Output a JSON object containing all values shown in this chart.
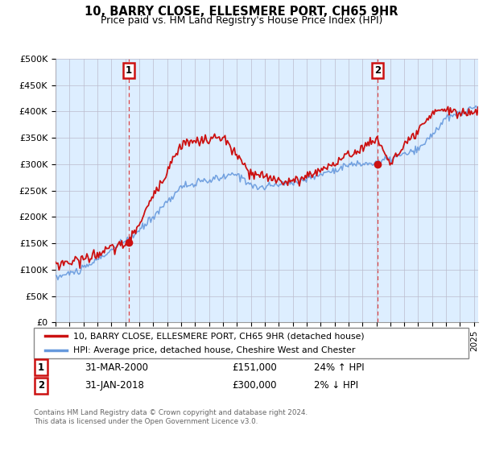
{
  "title": "10, BARRY CLOSE, ELLESMERE PORT, CH65 9HR",
  "subtitle": "Price paid vs. HM Land Registry's House Price Index (HPI)",
  "ylabel_ticks": [
    "£0",
    "£50K",
    "£100K",
    "£150K",
    "£200K",
    "£250K",
    "£300K",
    "£350K",
    "£400K",
    "£450K",
    "£500K"
  ],
  "ytick_values": [
    0,
    50000,
    100000,
    150000,
    200000,
    250000,
    300000,
    350000,
    400000,
    450000,
    500000
  ],
  "ylim": [
    0,
    500000
  ],
  "xlim_start": 1995.0,
  "xlim_end": 2025.3,
  "hpi_color": "#6699dd",
  "price_color": "#cc1111",
  "dashed_line_color": "#dd4444",
  "marker1_x": 2000.25,
  "marker1_y": 151000,
  "marker2_x": 2018.08,
  "marker2_y": 300000,
  "legend_line1": "10, BARRY CLOSE, ELLESMERE PORT, CH65 9HR (detached house)",
  "legend_line2": "HPI: Average price, detached house, Cheshire West and Chester",
  "table_row1": [
    "1",
    "31-MAR-2000",
    "£151,000",
    "24% ↑ HPI"
  ],
  "table_row2": [
    "2",
    "31-JAN-2018",
    "£300,000",
    "2% ↓ HPI"
  ],
  "footer": "Contains HM Land Registry data © Crown copyright and database right 2024.\nThis data is licensed under the Open Government Licence v3.0.",
  "background_color": "#ffffff",
  "chart_bg_color": "#ddeeff",
  "grid_color": "#bbbbcc"
}
